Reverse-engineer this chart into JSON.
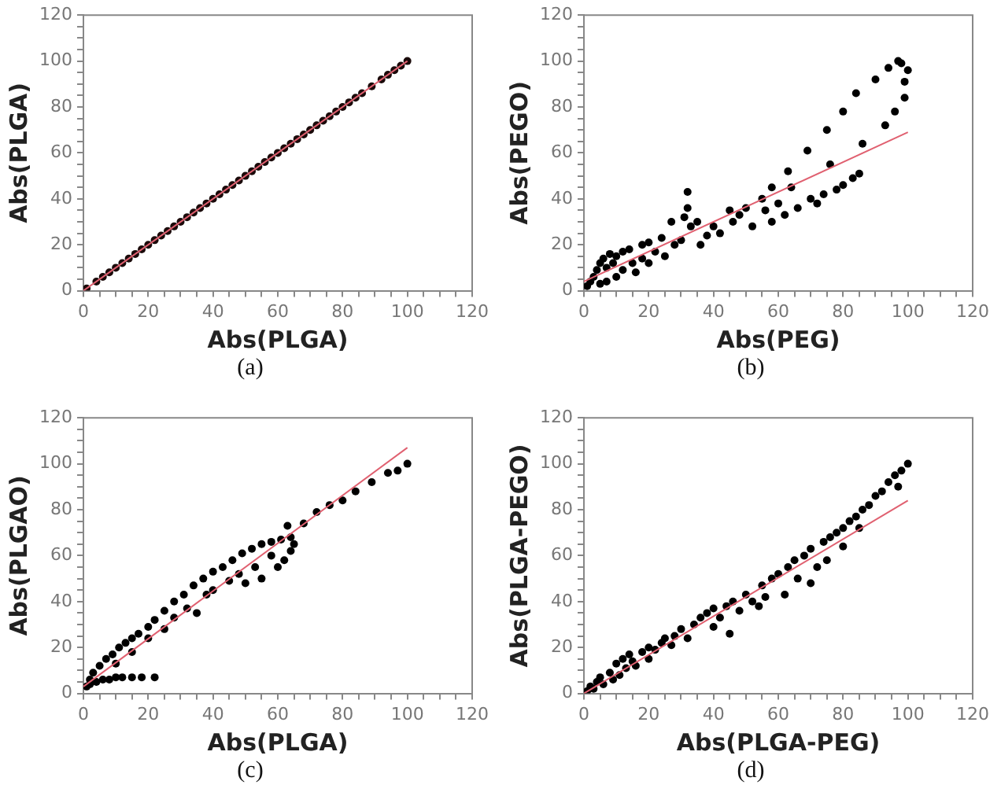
{
  "chart_data": [
    {
      "type": "scatter",
      "xlabel": "Abs(PLGA)",
      "ylabel": "Abs(PLGA)",
      "annotations": [
        "(a)"
      ],
      "xlim": [
        0,
        120
      ],
      "ylim": [
        0,
        120
      ],
      "xticks": [
        0,
        {
          "value": 5,
          "label": null
        },
        {
          "value": 10,
          "label": null
        },
        {
          "value": 15,
          "label": null
        },
        20,
        {
          "value": 25,
          "label": null
        },
        {
          "value": 30,
          "label": null
        },
        {
          "value": 35,
          "label": null
        },
        40,
        {
          "value": 45,
          "label": null
        },
        {
          "value": 50,
          "label": null
        },
        {
          "value": 55,
          "label": null
        },
        60,
        {
          "value": 65,
          "label": null
        },
        {
          "value": 70,
          "label": null
        },
        {
          "value": 75,
          "label": null
        },
        80,
        {
          "value": 85,
          "label": null
        },
        {
          "value": 90,
          "label": null
        },
        {
          "value": 95,
          "label": null
        },
        100,
        {
          "value": 105,
          "label": null
        },
        {
          "value": 110,
          "label": null
        },
        {
          "value": 115,
          "label": null
        },
        120
      ],
      "yticks": [
        0,
        {
          "value": 5,
          "label": null
        },
        {
          "value": 10,
          "label": null
        },
        {
          "value": 15,
          "label": null
        },
        20,
        {
          "value": 25,
          "label": null
        },
        {
          "value": 30,
          "label": null
        },
        {
          "value": 35,
          "label": null
        },
        40,
        {
          "value": 45,
          "label": null
        },
        {
          "value": 50,
          "label": null
        },
        {
          "value": 55,
          "label": null
        },
        60,
        {
          "value": 65,
          "label": null
        },
        {
          "value": 70,
          "label": null
        },
        {
          "value": 75,
          "label": null
        },
        80,
        {
          "value": 85,
          "label": null
        },
        {
          "value": 90,
          "label": null
        },
        {
          "value": 95,
          "label": null
        },
        100,
        {
          "value": 105,
          "label": null
        },
        {
          "value": 110,
          "label": null
        },
        {
          "value": 115,
          "label": null
        },
        120
      ],
      "grid": false,
      "legend": false,
      "marker": "circle",
      "series": [
        {
          "color": "#1a0a0a",
          "x": [
            1,
            4,
            6,
            8,
            10,
            12,
            14,
            16,
            18,
            20,
            22,
            24,
            26,
            28,
            30,
            32,
            34,
            36,
            38,
            40,
            42,
            44,
            46,
            48,
            50,
            52,
            54,
            56,
            58,
            60,
            62,
            64,
            66,
            68,
            70,
            72,
            74,
            76,
            78,
            80,
            82,
            84,
            86,
            89,
            92,
            94,
            96,
            98,
            100
          ],
          "values": [
            1,
            4,
            6,
            8,
            10,
            12,
            14,
            16,
            18,
            20,
            22,
            24,
            26,
            28,
            30,
            32,
            34,
            36,
            38,
            40,
            42,
            44,
            46,
            48,
            50,
            52,
            54,
            56,
            58,
            60,
            62,
            64,
            66,
            68,
            70,
            72,
            74,
            76,
            78,
            80,
            82,
            84,
            86,
            89,
            92,
            94,
            96,
            98,
            100
          ]
        },
        {
          "type": "line",
          "marker": "none",
          "color": "#e06070",
          "x": [
            0,
            100
          ],
          "values": [
            0,
            100
          ]
        }
      ]
    },
    {
      "type": "scatter",
      "xlabel": "Abs(PEG)",
      "ylabel": "Abs(PEGO)",
      "annotations": [
        "(b)"
      ],
      "xlim": [
        0,
        120
      ],
      "ylim": [
        0,
        120
      ],
      "xticks": [
        0,
        {
          "value": 5,
          "label": null
        },
        {
          "value": 10,
          "label": null
        },
        {
          "value": 15,
          "label": null
        },
        20,
        {
          "value": 25,
          "label": null
        },
        {
          "value": 30,
          "label": null
        },
        {
          "value": 35,
          "label": null
        },
        40,
        {
          "value": 45,
          "label": null
        },
        {
          "value": 50,
          "label": null
        },
        {
          "value": 55,
          "label": null
        },
        60,
        {
          "value": 65,
          "label": null
        },
        {
          "value": 70,
          "label": null
        },
        {
          "value": 75,
          "label": null
        },
        80,
        {
          "value": 85,
          "label": null
        },
        {
          "value": 90,
          "label": null
        },
        {
          "value": 95,
          "label": null
        },
        100,
        {
          "value": 105,
          "label": null
        },
        {
          "value": 110,
          "label": null
        },
        {
          "value": 115,
          "label": null
        },
        120
      ],
      "yticks": [
        0,
        {
          "value": 5,
          "label": null
        },
        {
          "value": 10,
          "label": null
        },
        {
          "value": 15,
          "label": null
        },
        20,
        {
          "value": 25,
          "label": null
        },
        {
          "value": 30,
          "label": null
        },
        {
          "value": 35,
          "label": null
        },
        40,
        {
          "value": 45,
          "label": null
        },
        {
          "value": 50,
          "label": null
        },
        {
          "value": 55,
          "label": null
        },
        60,
        {
          "value": 65,
          "label": null
        },
        {
          "value": 70,
          "label": null
        },
        {
          "value": 75,
          "label": null
        },
        80,
        {
          "value": 85,
          "label": null
        },
        {
          "value": 90,
          "label": null
        },
        {
          "value": 95,
          "label": null
        },
        100,
        {
          "value": 105,
          "label": null
        },
        {
          "value": 110,
          "label": null
        },
        {
          "value": 115,
          "label": null
        },
        120
      ],
      "grid": false,
      "legend": false,
      "marker": "circle",
      "series": [
        {
          "color": "#000000",
          "x": [
            1,
            2,
            3,
            4,
            5,
            5,
            6,
            7,
            7,
            8,
            9,
            10,
            10,
            12,
            12,
            14,
            15,
            16,
            18,
            18,
            20,
            20,
            22,
            24,
            25,
            27,
            28,
            30,
            31,
            32,
            32,
            33,
            35,
            36,
            38,
            40,
            42,
            45,
            46,
            48,
            50,
            52,
            55,
            56,
            58,
            58,
            60,
            62,
            63,
            64,
            66,
            69,
            70,
            72,
            74,
            75,
            76,
            78,
            80,
            80,
            83,
            84,
            85,
            86,
            90,
            93,
            94,
            96,
            97,
            98,
            99,
            99,
            100
          ],
          "values": [
            2,
            4,
            6,
            9,
            12,
            3,
            14,
            10,
            4,
            16,
            12,
            6,
            15,
            17,
            9,
            18,
            12,
            8,
            20,
            14,
            21,
            12,
            17,
            23,
            15,
            30,
            20,
            22,
            32,
            43,
            36,
            28,
            30,
            20,
            24,
            28,
            25,
            35,
            30,
            33,
            36,
            28,
            40,
            35,
            45,
            30,
            38,
            33,
            52,
            45,
            36,
            61,
            40,
            38,
            42,
            70,
            55,
            44,
            78,
            46,
            49,
            86,
            51,
            64,
            92,
            72,
            97,
            78,
            100,
            99,
            84,
            91,
            96
          ]
        },
        {
          "type": "line",
          "marker": "none",
          "color": "#e06070",
          "x": [
            0,
            100
          ],
          "values": [
            4,
            69
          ]
        }
      ]
    },
    {
      "type": "scatter",
      "xlabel": "Abs(PLGA)",
      "ylabel": "Abs(PLGAO)",
      "annotations": [
        "(c)"
      ],
      "xlim": [
        0,
        120
      ],
      "ylim": [
        0,
        120
      ],
      "xticks": [
        0,
        {
          "value": 5,
          "label": null
        },
        {
          "value": 10,
          "label": null
        },
        {
          "value": 15,
          "label": null
        },
        20,
        {
          "value": 25,
          "label": null
        },
        {
          "value": 30,
          "label": null
        },
        {
          "value": 35,
          "label": null
        },
        40,
        {
          "value": 45,
          "label": null
        },
        {
          "value": 50,
          "label": null
        },
        {
          "value": 55,
          "label": null
        },
        60,
        {
          "value": 65,
          "label": null
        },
        {
          "value": 70,
          "label": null
        },
        {
          "value": 75,
          "label": null
        },
        80,
        {
          "value": 85,
          "label": null
        },
        {
          "value": 90,
          "label": null
        },
        {
          "value": 95,
          "label": null
        },
        100,
        {
          "value": 105,
          "label": null
        },
        {
          "value": 110,
          "label": null
        },
        {
          "value": 115,
          "label": null
        },
        120
      ],
      "yticks": [
        0,
        {
          "value": 5,
          "label": null
        },
        {
          "value": 10,
          "label": null
        },
        {
          "value": 15,
          "label": null
        },
        20,
        {
          "value": 25,
          "label": null
        },
        {
          "value": 30,
          "label": null
        },
        {
          "value": 35,
          "label": null
        },
        40,
        {
          "value": 45,
          "label": null
        },
        {
          "value": 50,
          "label": null
        },
        {
          "value": 55,
          "label": null
        },
        60,
        {
          "value": 65,
          "label": null
        },
        {
          "value": 70,
          "label": null
        },
        {
          "value": 75,
          "label": null
        },
        80,
        {
          "value": 85,
          "label": null
        },
        {
          "value": 90,
          "label": null
        },
        {
          "value": 95,
          "label": null
        },
        100,
        {
          "value": 105,
          "label": null
        },
        {
          "value": 110,
          "label": null
        },
        {
          "value": 115,
          "label": null
        },
        120
      ],
      "grid": false,
      "legend": false,
      "marker": "circle",
      "series": [
        {
          "color": "#000000",
          "x": [
            2,
            4,
            6,
            8,
            10,
            12,
            15,
            18,
            22,
            1,
            2,
            3,
            5,
            7,
            9,
            11,
            13,
            15,
            17,
            20,
            22,
            25,
            28,
            31,
            34,
            37,
            40,
            43,
            46,
            49,
            52,
            55,
            58,
            61,
            64,
            65,
            63,
            10,
            15,
            20,
            25,
            28,
            32,
            35,
            38,
            40,
            45,
            48,
            50,
            53,
            55,
            58,
            60,
            62,
            64,
            68,
            72,
            76,
            80,
            84,
            89,
            94,
            97,
            100
          ],
          "values": [
            4,
            5,
            6,
            6,
            7,
            7,
            7,
            7,
            7,
            3,
            6,
            9,
            12,
            15,
            17,
            20,
            22,
            24,
            26,
            29,
            32,
            36,
            40,
            43,
            47,
            50,
            53,
            55,
            58,
            61,
            63,
            65,
            66,
            67,
            68,
            65,
            73,
            13,
            18,
            24,
            28,
            33,
            37,
            35,
            43,
            45,
            49,
            52,
            48,
            55,
            50,
            60,
            55,
            58,
            62,
            74,
            79,
            82,
            84,
            88,
            92,
            96,
            97,
            100
          ]
        },
        {
          "type": "line",
          "marker": "none",
          "color": "#e06070",
          "x": [
            0,
            100
          ],
          "values": [
            3,
            107
          ]
        }
      ]
    },
    {
      "type": "scatter",
      "xlabel": "Abs(PLGA-PEG)",
      "ylabel": "Abs(PLGA-PEGO)",
      "annotations": [
        "(d)"
      ],
      "xlim": [
        0,
        120
      ],
      "ylim": [
        0,
        120
      ],
      "xticks": [
        0,
        {
          "value": 5,
          "label": null
        },
        {
          "value": 10,
          "label": null
        },
        {
          "value": 15,
          "label": null
        },
        20,
        {
          "value": 25,
          "label": null
        },
        {
          "value": 30,
          "label": null
        },
        {
          "value": 35,
          "label": null
        },
        40,
        {
          "value": 45,
          "label": null
        },
        {
          "value": 50,
          "label": null
        },
        {
          "value": 55,
          "label": null
        },
        60,
        {
          "value": 65,
          "label": null
        },
        {
          "value": 70,
          "label": null
        },
        {
          "value": 75,
          "label": null
        },
        80,
        {
          "value": 85,
          "label": null
        },
        {
          "value": 90,
          "label": null
        },
        {
          "value": 95,
          "label": null
        },
        100,
        {
          "value": 105,
          "label": null
        },
        {
          "value": 110,
          "label": null
        },
        {
          "value": 115,
          "label": null
        },
        120
      ],
      "yticks": [
        0,
        {
          "value": 5,
          "label": null
        },
        {
          "value": 10,
          "label": null
        },
        {
          "value": 15,
          "label": null
        },
        20,
        {
          "value": 25,
          "label": null
        },
        {
          "value": 30,
          "label": null
        },
        {
          "value": 35,
          "label": null
        },
        40,
        {
          "value": 45,
          "label": null
        },
        {
          "value": 50,
          "label": null
        },
        {
          "value": 55,
          "label": null
        },
        60,
        {
          "value": 65,
          "label": null
        },
        {
          "value": 70,
          "label": null
        },
        {
          "value": 75,
          "label": null
        },
        80,
        {
          "value": 85,
          "label": null
        },
        {
          "value": 90,
          "label": null
        },
        {
          "value": 95,
          "label": null
        },
        100,
        {
          "value": 105,
          "label": null
        },
        {
          "value": 110,
          "label": null
        },
        {
          "value": 115,
          "label": null
        },
        120
      ],
      "grid": false,
      "legend": false,
      "marker": "circle",
      "series": [
        {
          "color": "#000000",
          "x": [
            1,
            2,
            3,
            4,
            5,
            6,
            8,
            9,
            10,
            11,
            12,
            13,
            14,
            15,
            16,
            18,
            20,
            20,
            22,
            24,
            25,
            27,
            28,
            30,
            32,
            34,
            36,
            38,
            40,
            40,
            42,
            44,
            45,
            46,
            48,
            50,
            52,
            54,
            55,
            56,
            58,
            60,
            62,
            63,
            65,
            66,
            68,
            70,
            70,
            72,
            74,
            75,
            76,
            78,
            80,
            80,
            82,
            84,
            85,
            86,
            88,
            90,
            92,
            94,
            96,
            97,
            98,
            100
          ],
          "values": [
            1,
            3,
            2,
            5,
            7,
            4,
            9,
            6,
            13,
            8,
            15,
            11,
            17,
            14,
            12,
            18,
            20,
            15,
            19,
            22,
            24,
            21,
            25,
            28,
            24,
            30,
            33,
            35,
            37,
            29,
            33,
            38,
            26,
            40,
            36,
            43,
            40,
            38,
            47,
            42,
            50,
            52,
            43,
            55,
            58,
            50,
            60,
            63,
            48,
            55,
            66,
            58,
            68,
            70,
            72,
            64,
            75,
            77,
            72,
            80,
            82,
            86,
            88,
            92,
            95,
            90,
            97,
            100
          ]
        },
        {
          "type": "line",
          "marker": "none",
          "color": "#e06070",
          "x": [
            0,
            100
          ],
          "values": [
            0,
            84
          ]
        }
      ]
    }
  ]
}
